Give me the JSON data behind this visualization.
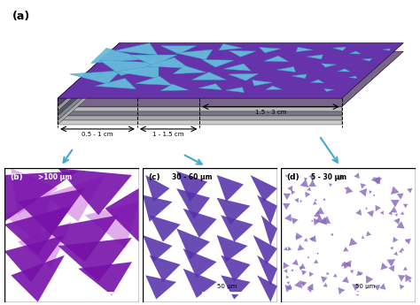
{
  "fig_width": 4.74,
  "fig_height": 3.45,
  "dpi": 100,
  "bg_color": "#ffffff",
  "top_surface_color": "#6633aa",
  "top_surface_color2": "#7744bb",
  "side_front_color": "#443355",
  "side_right_color": "#886699",
  "layer1_left": "#888888",
  "layer1_right": "#aaaaaa",
  "layer2_left": "#555566",
  "layer2_right": "#777788",
  "layer3_left": "#999999",
  "layer3_right": "#bbbbbb",
  "triangle_color": "#66bbdd",
  "arrow_color": "#44aacc",
  "panel_b_bg": "#bb44cc",
  "panel_b_tri_dark": "#7711aa",
  "panel_b_tri_light": "#cc77dd",
  "panel_c_bg": "#ddaadd",
  "panel_c_tri": "#5533aa",
  "panel_d_bg": "#e8c8e8",
  "panel_d_tri": "#8866bb",
  "dim_label1": "0.5 - 1 cm",
  "dim_label2": "1 - 1.5 cm",
  "dim_label3": "1.5 - 3 cm"
}
